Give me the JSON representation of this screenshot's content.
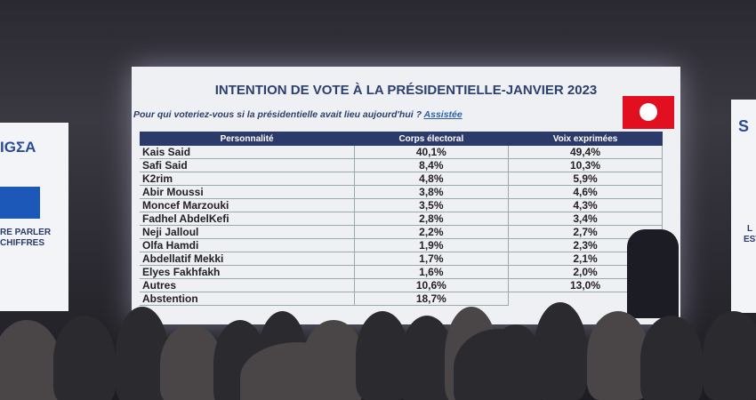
{
  "slide": {
    "title": "INTENTION DE VOTE À LA PRÉSIDENTIELLE-JANVIER  2023",
    "question": "Pour qui voteriez-vous si la présidentielle avait lieu aujourd'hui ?",
    "question_link": "Assistée",
    "table": {
      "header": [
        "Personnalité",
        "Corps électoral",
        "Voix exprimées"
      ],
      "rows": [
        [
          "Kais Said",
          "40,1%",
          "49,4%"
        ],
        [
          "Safi Said",
          "8,4%",
          "10,3%"
        ],
        [
          "K2rim",
          "4,8%",
          "5,9%"
        ],
        [
          "Abir Moussi",
          "3,8%",
          "4,6%"
        ],
        [
          "Moncef Marzouki",
          "3,5%",
          "4,3%"
        ],
        [
          "Fadhel AbdelKefi",
          "2,8%",
          "3,4%"
        ],
        [
          "Neji Jalloul",
          "2,2%",
          "2,7%"
        ],
        [
          "Olfa Hamdi",
          "1,9%",
          "2,3%"
        ],
        [
          "Abdellatif Mekki",
          "1,7%",
          "2,1%"
        ],
        [
          "Elyes Fakhfakh",
          "1,6%",
          "2,0%"
        ],
        [
          "Autres",
          "10,6%",
          "13,0%"
        ],
        [
          "Abstention",
          "18,7%"
        ]
      ]
    }
  },
  "left_panel": {
    "logo": "IGΣA",
    "line1": "RE PARLER",
    "line2": "CHIFFRES"
  },
  "right_panel": {
    "logo": "S",
    "line1": "L",
    "line2": "EST"
  }
}
